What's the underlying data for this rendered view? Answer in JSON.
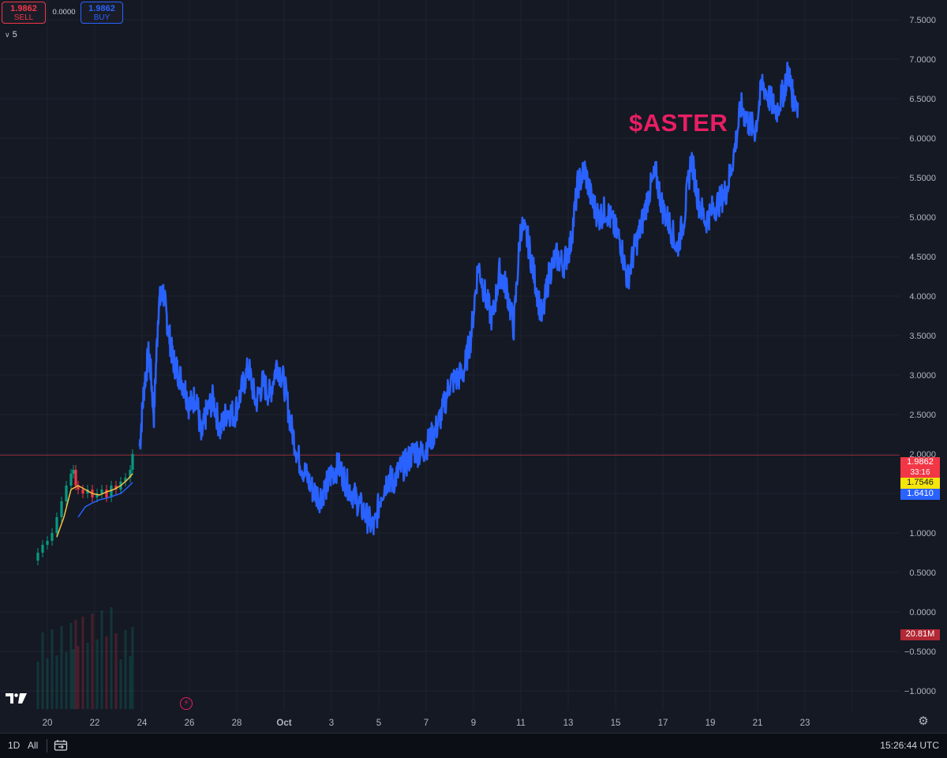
{
  "trade_panel": {
    "sell_price": "1.9862",
    "sell_label": "SELL",
    "spread": "0.0000",
    "buy_price": "1.9862",
    "buy_label": "BUY",
    "interval_count": "5"
  },
  "symbol_label": "$ASTER",
  "price_tags": {
    "last_price": "1.9862",
    "countdown": "33:16",
    "ma_yellow": "1.7546",
    "ma_blue": "1.6410",
    "volume": "20.81M"
  },
  "bottom_bar": {
    "timeframe": "1D",
    "range": "All",
    "clock": "15:26:44 UTC"
  },
  "colors": {
    "background": "#151924",
    "grid": "#1f2330",
    "price_line": "#2962ff",
    "up_candle": "#089981",
    "down_candle": "#f23645",
    "ma_yellow": "#f5c242",
    "ma_blue": "#2962ff",
    "accent_label": "#e91e63"
  },
  "icons": {
    "logo": "tradingview-logo-icon",
    "replay": "flash-icon",
    "settings": "gear-icon",
    "compare": "compare-icon"
  },
  "chart_data": {
    "type": "line",
    "title": "",
    "y_ticks": [
      7.5,
      7.0,
      6.5,
      6.0,
      5.5,
      5.0,
      4.5,
      4.0,
      3.5,
      3.0,
      2.5,
      2.0,
      1.5,
      1.0,
      0.5,
      0.0,
      -0.5,
      -1.0
    ],
    "y_tick_labels": [
      "7.5000",
      "7.0000",
      "6.5000",
      "6.0000",
      "5.5000",
      "5.0000",
      "4.5000",
      "4.0000",
      "3.5000",
      "3.0000",
      "2.5000",
      "2.0000",
      "1.5000",
      "1.0000",
      "0.5000",
      "0.0000",
      "−0.5000",
      "−1.0000"
    ],
    "ylim": [
      -1.25,
      7.75
    ],
    "x_ticks": [
      20,
      22,
      24,
      26,
      28,
      30,
      32,
      34,
      36,
      38,
      40,
      42,
      44,
      46,
      48,
      50,
      52,
      54
    ],
    "x_tick_labels": [
      "20",
      "22",
      "24",
      "26",
      "28",
      "Oct",
      "3",
      "5",
      "7",
      "9",
      "11",
      "13",
      "15",
      "17",
      "19",
      "21",
      "23",
      ""
    ],
    "xlim": [
      18.0,
      56.0
    ],
    "last_price": 1.9862,
    "series": [
      {
        "style": "line",
        "color": "#2962ff",
        "x": [
          23.9,
          24.1,
          24.3,
          24.5,
          24.7,
          24.9,
          25.1,
          25.3,
          25.5,
          25.8,
          26.0,
          26.3,
          26.5,
          26.7,
          27.0,
          27.3,
          27.6,
          27.9,
          28.2,
          28.5,
          28.8,
          29.1,
          29.4,
          29.7,
          30.0,
          30.3,
          30.6,
          30.9,
          31.2,
          31.5,
          31.8,
          32.0,
          32.3,
          32.6,
          32.9,
          33.2,
          33.5,
          33.8,
          34.1,
          34.4,
          34.6,
          34.9,
          35.2,
          35.5,
          35.8,
          36.1,
          36.4,
          36.7,
          37.0,
          37.3,
          37.6,
          37.9,
          38.2,
          38.5,
          38.8,
          39.1,
          39.4,
          39.7,
          40.0,
          40.3,
          40.6,
          40.9,
          41.2,
          41.5,
          41.8,
          42.1,
          42.4,
          42.7,
          43.0,
          43.3,
          43.6,
          43.9,
          44.2,
          44.5,
          44.8,
          45.1,
          45.4,
          45.7,
          46.0,
          46.3,
          46.6,
          46.9,
          47.2,
          47.5,
          47.8,
          48.1,
          48.4,
          48.7,
          49.0,
          49.3,
          49.6,
          49.9,
          50.2,
          50.5,
          50.8,
          51.1,
          51.3,
          51.5,
          51.7
        ],
        "values": [
          2.1,
          2.9,
          3.3,
          2.5,
          3.9,
          4.05,
          3.6,
          3.2,
          3.05,
          2.85,
          2.6,
          2.75,
          2.2,
          2.5,
          2.7,
          2.3,
          2.55,
          2.5,
          2.8,
          3.1,
          2.65,
          2.9,
          2.75,
          3.15,
          2.9,
          2.35,
          1.95,
          1.75,
          1.55,
          1.45,
          1.6,
          1.75,
          1.85,
          1.65,
          1.5,
          1.35,
          1.2,
          1.05,
          1.5,
          1.7,
          1.65,
          1.8,
          1.9,
          2.05,
          2.0,
          2.15,
          2.3,
          2.55,
          2.9,
          2.95,
          3.05,
          3.5,
          4.4,
          4.0,
          3.7,
          4.3,
          4.1,
          3.6,
          4.9,
          4.7,
          4.2,
          3.7,
          4.3,
          4.5,
          4.4,
          4.65,
          5.4,
          5.6,
          5.2,
          5.0,
          5.1,
          4.9,
          4.7,
          4.2,
          4.6,
          4.9,
          5.3,
          5.55,
          5.1,
          4.9,
          4.6,
          5.0,
          5.75,
          5.2,
          4.95,
          5.1,
          5.2,
          5.35,
          5.8,
          6.4,
          6.2,
          6.1,
          6.7,
          6.5,
          6.35,
          6.6,
          6.85,
          6.5,
          6.45
        ]
      },
      {
        "style": "candles",
        "x": [
          19.6,
          19.8,
          20.0,
          20.2,
          20.4,
          20.6,
          20.8,
          21.0,
          21.1,
          21.2,
          21.3,
          21.5,
          21.7,
          21.9,
          22.1,
          22.3,
          22.5,
          22.7,
          22.9,
          23.1,
          23.3,
          23.5,
          23.6
        ],
        "open": [
          0.65,
          0.75,
          0.85,
          0.9,
          1.0,
          1.2,
          1.4,
          1.6,
          1.75,
          1.8,
          1.6,
          1.55,
          1.5,
          1.55,
          1.45,
          1.5,
          1.55,
          1.45,
          1.6,
          1.55,
          1.65,
          1.7,
          1.8
        ],
        "close": [
          0.75,
          0.85,
          0.9,
          1.0,
          1.2,
          1.4,
          1.6,
          1.75,
          1.8,
          1.6,
          1.55,
          1.5,
          1.55,
          1.45,
          1.5,
          1.55,
          1.45,
          1.6,
          1.55,
          1.65,
          1.7,
          1.8,
          2.0
        ]
      },
      {
        "style": "line",
        "color": "#f5c242",
        "x": [
          20.4,
          20.7,
          21.0,
          21.3,
          21.6,
          21.9,
          22.2,
          22.5,
          22.8,
          23.1,
          23.4,
          23.6
        ],
        "values": [
          0.95,
          1.2,
          1.55,
          1.6,
          1.55,
          1.5,
          1.48,
          1.52,
          1.55,
          1.6,
          1.68,
          1.75
        ]
      },
      {
        "style": "line",
        "color": "#2962ff",
        "x": [
          21.3,
          21.6,
          21.9,
          22.2,
          22.5,
          22.8,
          23.1,
          23.4,
          23.6
        ],
        "values": [
          1.2,
          1.33,
          1.38,
          1.42,
          1.44,
          1.47,
          1.5,
          1.58,
          1.64
        ]
      }
    ]
  }
}
